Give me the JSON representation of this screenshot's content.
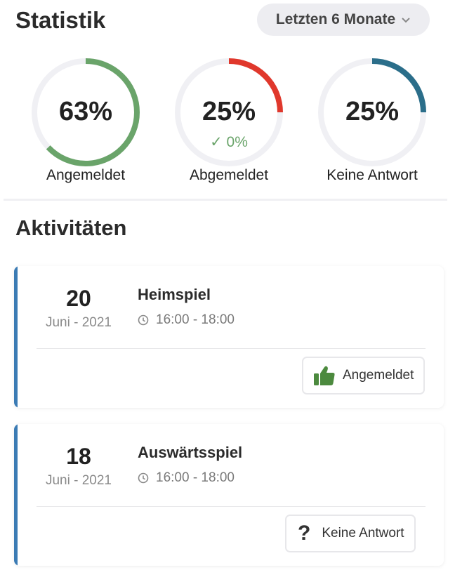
{
  "stats": {
    "title": "Statistik",
    "period": "Letzten 6 Monate",
    "rings": [
      {
        "value": "63%",
        "label": "Angemeldet",
        "fraction": 0.63,
        "color": "#6aa46a",
        "sub": ""
      },
      {
        "value": "25%",
        "label": "Abgemeldet",
        "fraction": 0.25,
        "color": "#e0382c",
        "sub": "✓ 0%"
      },
      {
        "value": "25%",
        "label": "Keine Antwort",
        "fraction": 0.25,
        "color": "#2b6e8a",
        "sub": ""
      }
    ]
  },
  "activities": {
    "title": "Aktivitäten",
    "items": [
      {
        "day": "20",
        "month": "Juni - 2021",
        "title": "Heimspiel",
        "time": "16:00 - 18:00",
        "status": "Angemeldet"
      },
      {
        "day": "18",
        "month": "Juni - 2021",
        "title": "Auswärtsspiel",
        "time": "16:00 - 18:00",
        "status": "Keine Antwort"
      }
    ]
  },
  "colors": {
    "accent": "#3b7bb4",
    "ring_track": "#f0f0f4",
    "thumb": "#4c8a3e"
  },
  "icons": [
    "chevron-down-icon",
    "clock-icon",
    "thumbs-up-icon",
    "question-mark-icon",
    "check-icon"
  ]
}
